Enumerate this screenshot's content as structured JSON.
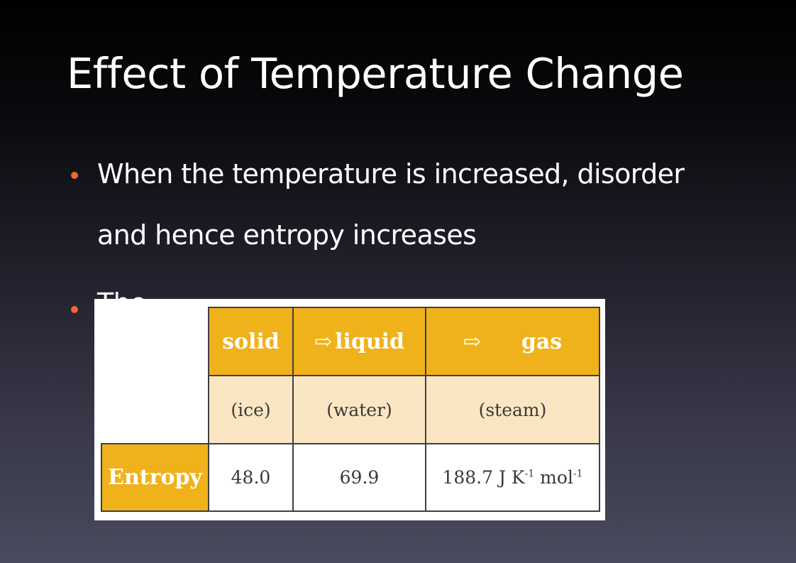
{
  "slide": {
    "title": "Effect of Temperature Change",
    "bullets": [
      "When the temperature is increased, disorder and hence entropy increases",
      "The"
    ]
  },
  "table": {
    "header": [
      {
        "arrow": "",
        "label": "solid"
      },
      {
        "arrow": "⇨",
        "label": "liquid"
      },
      {
        "arrow": "⇨",
        "label": "gas"
      }
    ],
    "subheader": [
      "(ice)",
      "(water)",
      "(steam)"
    ],
    "row_label": "Entropy",
    "values": [
      "48.0",
      "69.9",
      "188.7 J K"
    ],
    "units": {
      "k_exp": "-1",
      "mol": " mol",
      "mol_exp": "-1"
    }
  },
  "colors": {
    "header_fill": "#f0b21b",
    "subheader_fill": "#fbe6c3",
    "bullet_dot": "#ee6a2c"
  }
}
